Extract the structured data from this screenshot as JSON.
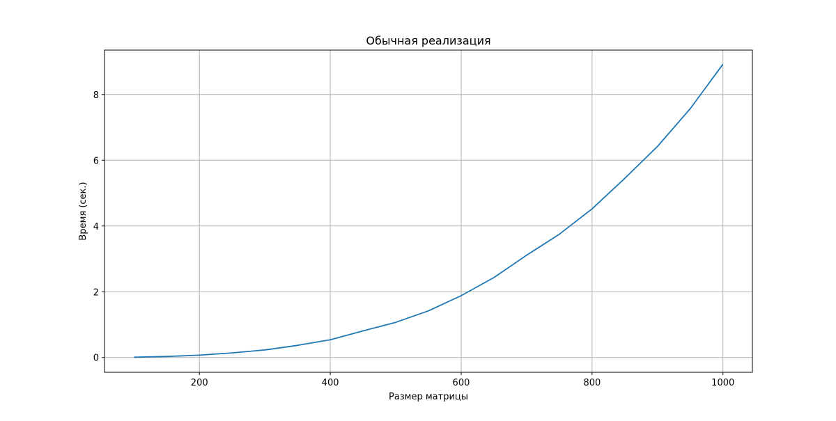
{
  "chart_data": {
    "type": "line",
    "title": "Обычная реализация",
    "xlabel": "Размер матрицы",
    "ylabel": "Время (сек.)",
    "xlim": [
      55,
      1045
    ],
    "ylim": [
      -0.45,
      9.35
    ],
    "xticks": [
      200,
      400,
      600,
      800,
      1000
    ],
    "yticks": [
      0,
      2,
      4,
      6,
      8
    ],
    "grid": true,
    "line_color": "#1f77b4",
    "grid_color": "#b0b0b0",
    "series": [
      {
        "x": [
          100,
          150,
          200,
          250,
          300,
          350,
          400,
          450,
          500,
          550,
          600,
          650,
          700,
          750,
          800,
          850,
          900,
          950,
          1000
        ],
        "y": [
          0.01,
          0.03,
          0.07,
          0.14,
          0.23,
          0.37,
          0.54,
          0.81,
          1.07,
          1.42,
          1.88,
          2.43,
          3.11,
          3.75,
          4.52,
          5.45,
          6.42,
          7.57,
          8.92
        ]
      }
    ]
  }
}
